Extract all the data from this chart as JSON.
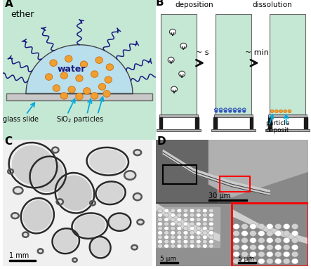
{
  "panel_A": {
    "bg_color": "#c5e8d5",
    "droplet_color": "#b8dff0",
    "droplet_outline": "#444444",
    "glass_color": "#c8c8c8",
    "glass_outline": "#666666",
    "particle_color": "#f0a030",
    "particle_outline": "#cc7010",
    "arrow_color": "#1a1a80",
    "label_ether": "ether",
    "label_water": "water",
    "label_glass": "glass slide",
    "label_sio2": "SiO$_2$ particles",
    "cyan": "#00aadd"
  },
  "panel_B": {
    "box_color": "#c5e8d5",
    "box_outline": "#666666",
    "stand_color": "#1a1a1a",
    "glass_color": "#b0b0b0",
    "particle_color": "#f0a030",
    "particle_outline": "#cc7010",
    "blue_wave": "#3355bb",
    "arrow_big": "#111111",
    "cyan": "#00aadd",
    "label_deposition": "deposition",
    "label_dissolution": "dissolution",
    "label_s": "~ s",
    "label_min": "~ min",
    "label_particle": "particle\ndeposit"
  }
}
